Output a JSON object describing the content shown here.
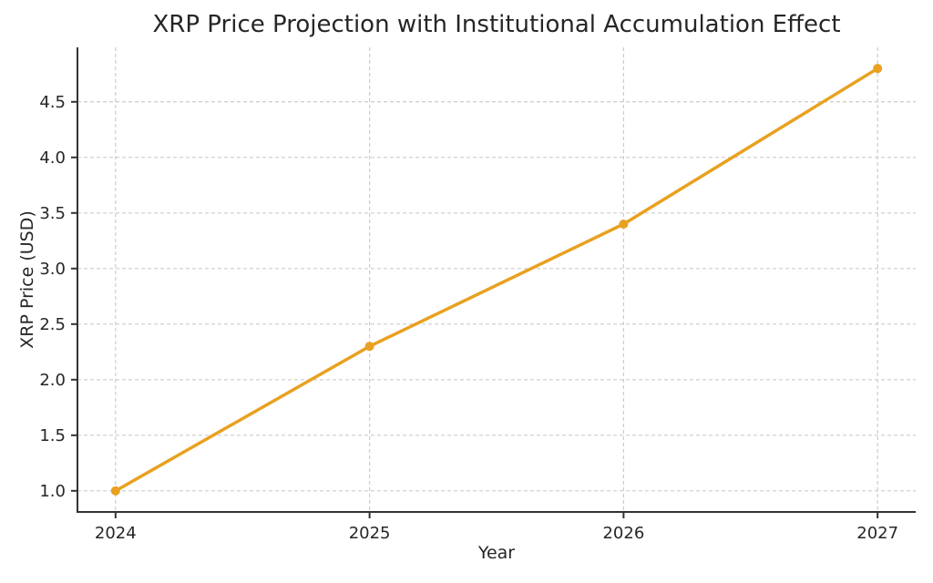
{
  "figure": {
    "background_color": "#ffffff"
  },
  "chart_data": {
    "type": "line",
    "title": "XRP Price Projection with Institutional Accumulation Effect",
    "xlabel": "Year",
    "ylabel": "XRP Price (USD)",
    "x": [
      2024,
      2025,
      2026,
      2027
    ],
    "series": [
      {
        "name": "XRP Price",
        "values": [
          1.0,
          2.3,
          3.4,
          4.8
        ]
      }
    ],
    "xticks": [
      "2024",
      "2025",
      "2026",
      "2027"
    ],
    "xtick_values": [
      2024,
      2025,
      2026,
      2027
    ],
    "yticks": [
      "1.0",
      "1.5",
      "2.0",
      "2.5",
      "3.0",
      "3.5",
      "4.0",
      "4.5"
    ],
    "ytick_values": [
      1.0,
      1.5,
      2.0,
      2.5,
      3.0,
      3.5,
      4.0,
      4.5
    ],
    "xlim": [
      2023.85,
      2027.15
    ],
    "ylim": [
      0.81,
      4.99
    ],
    "grid": true,
    "grid_style": "dashed",
    "legend": false,
    "marker": "circle",
    "colors": {
      "line": "#E8A120",
      "marker": "#E8A120",
      "grid": "#cccccc",
      "spine": "#333333",
      "text": "#262626"
    }
  }
}
